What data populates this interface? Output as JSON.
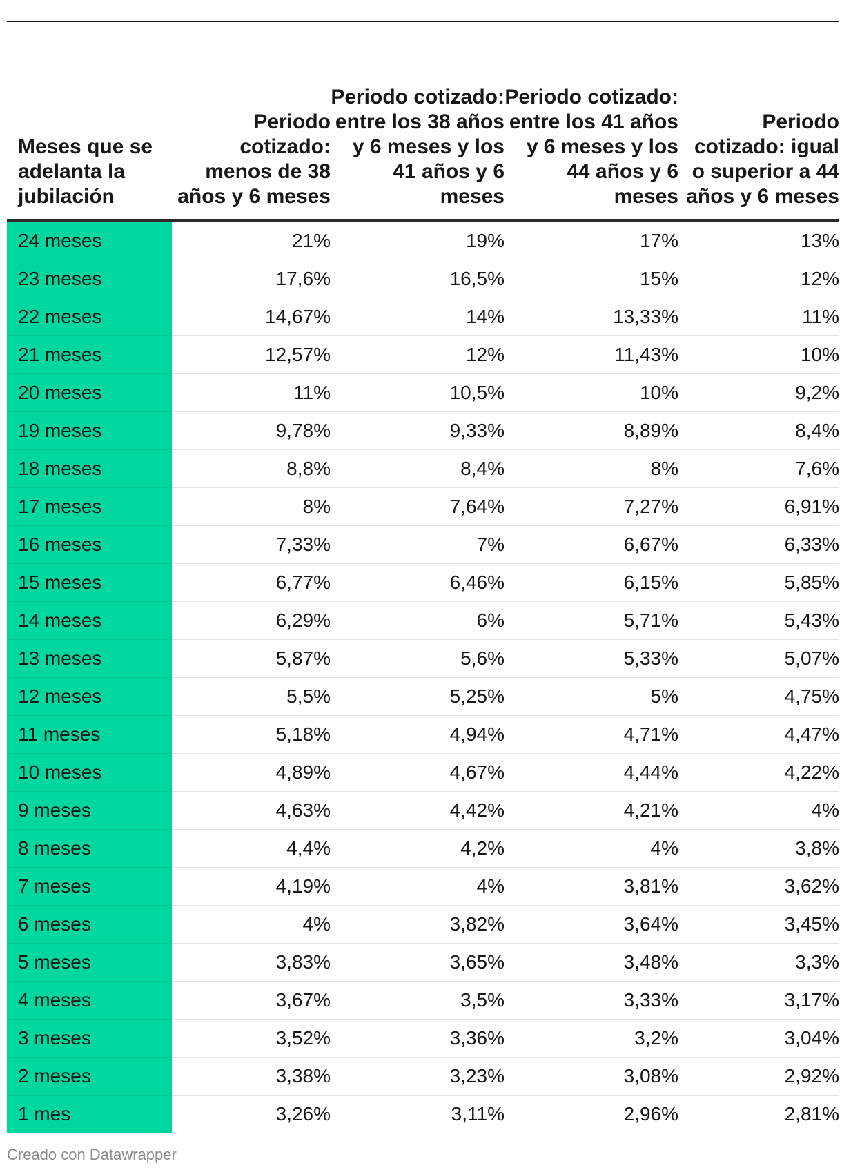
{
  "chart_data": {
    "type": "table",
    "columns": [
      "Meses que se adelanta la jubilación",
      "Periodo cotizado: menos de 38 años y 6 meses",
      "Periodo cotizado: entre los 38 años y 6 meses y los 41 años y 6 meses",
      "Periodo cotizado: entre los 41 años y 6 meses y los 44 años y 6 meses",
      "Periodo cotizado: igual o superior a 44 años y 6 meses"
    ],
    "rows": [
      [
        "24 meses",
        "21%",
        "19%",
        "17%",
        "13%"
      ],
      [
        "23 meses",
        "17,6%",
        "16,5%",
        "15%",
        "12%"
      ],
      [
        "22 meses",
        "14,67%",
        "14%",
        "13,33%",
        "11%"
      ],
      [
        "21 meses",
        "12,57%",
        "12%",
        "11,43%",
        "10%"
      ],
      [
        "20 meses",
        "11%",
        "10,5%",
        "10%",
        "9,2%"
      ],
      [
        "19 meses",
        "9,78%",
        "9,33%",
        "8,89%",
        "8,4%"
      ],
      [
        "18 meses",
        "8,8%",
        "8,4%",
        "8%",
        "7,6%"
      ],
      [
        "17 meses",
        "8%",
        "7,64%",
        "7,27%",
        "6,91%"
      ],
      [
        "16 meses",
        "7,33%",
        "7%",
        "6,67%",
        "6,33%"
      ],
      [
        "15 meses",
        "6,77%",
        "6,46%",
        "6,15%",
        "5,85%"
      ],
      [
        "14 meses",
        "6,29%",
        "6%",
        "5,71%",
        "5,43%"
      ],
      [
        "13 meses",
        "5,87%",
        "5,6%",
        "5,33%",
        "5,07%"
      ],
      [
        "12 meses",
        "5,5%",
        "5,25%",
        "5%",
        "4,75%"
      ],
      [
        "11 meses",
        "5,18%",
        "4,94%",
        "4,71%",
        "4,47%"
      ],
      [
        "10 meses",
        "4,89%",
        "4,67%",
        "4,44%",
        "4,22%"
      ],
      [
        "9 meses",
        "4,63%",
        "4,42%",
        "4,21%",
        "4%"
      ],
      [
        "8 meses",
        "4,4%",
        "4,2%",
        "4%",
        "3,8%"
      ],
      [
        "7 meses",
        "4,19%",
        "4%",
        "3,81%",
        "3,62%"
      ],
      [
        "6 meses",
        "4%",
        "3,82%",
        "3,64%",
        "3,45%"
      ],
      [
        "5 meses",
        "3,83%",
        "3,65%",
        "3,48%",
        "3,3%"
      ],
      [
        "4 meses",
        "3,67%",
        "3,5%",
        "3,33%",
        "3,17%"
      ],
      [
        "3 meses",
        "3,52%",
        "3,36%",
        "3,2%",
        "3,04%"
      ],
      [
        "2 meses",
        "3,38%",
        "3,23%",
        "3,08%",
        "2,92%"
      ],
      [
        "1 mes",
        "3,26%",
        "3,11%",
        "2,96%",
        "2,81%"
      ]
    ],
    "highlight_column_color": "#00d79f"
  },
  "footer": "Creado con Datawrapper"
}
